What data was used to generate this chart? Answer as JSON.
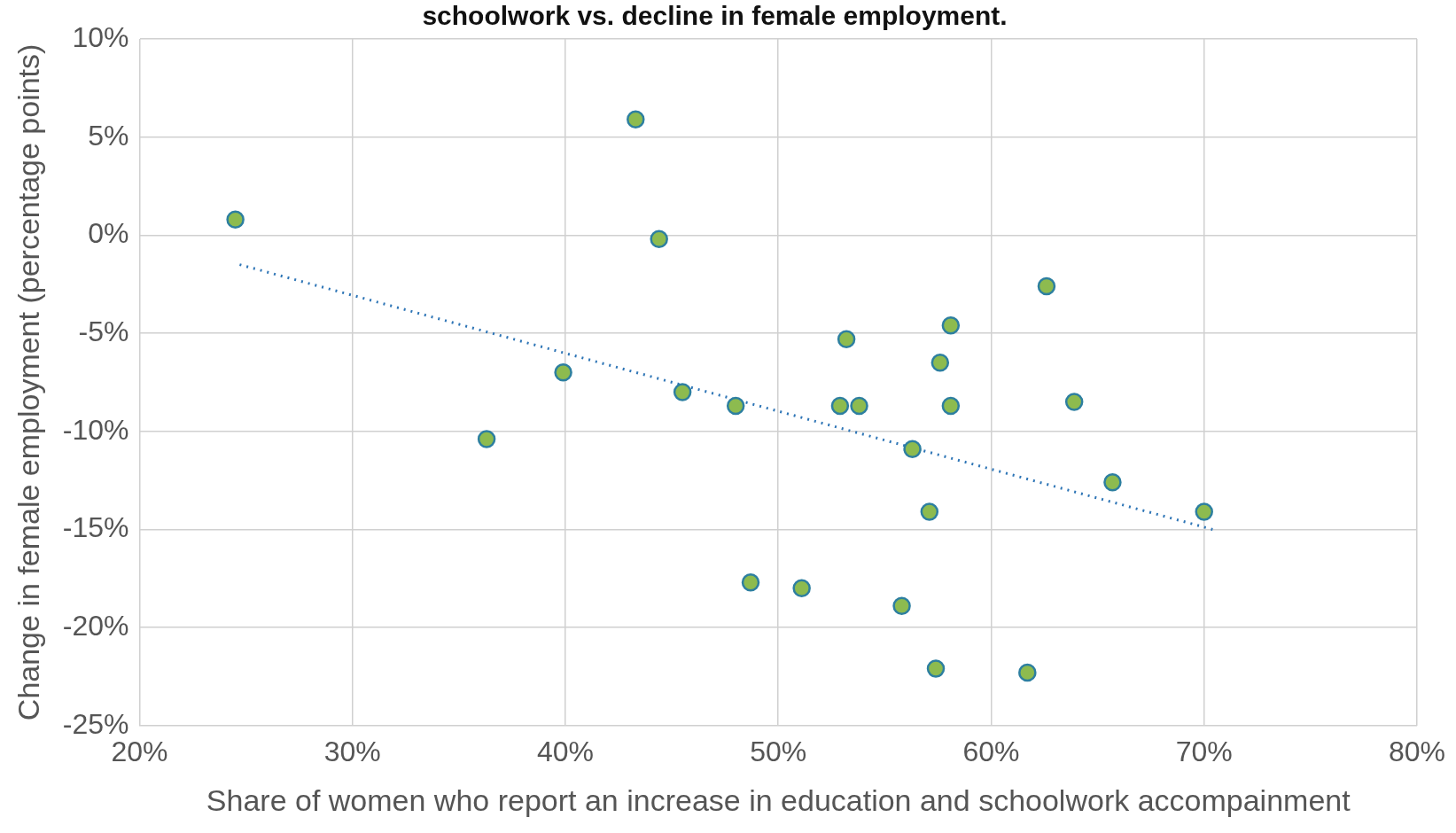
{
  "chart_data": {
    "type": "scatter",
    "title": "schoolwork vs. decline in female employment.",
    "xlabel": "Share of women who report an increase in education and schoolwork accompainment",
    "ylabel": "Change in female employment (percentage points)",
    "xlim": [
      20,
      80
    ],
    "xticks": [
      {
        "value": 20,
        "label": "20%"
      },
      {
        "value": 30,
        "label": "30%"
      },
      {
        "value": 40,
        "label": "40%"
      },
      {
        "value": 50,
        "label": "50%"
      },
      {
        "value": 60,
        "label": "60%"
      },
      {
        "value": 70,
        "label": "70%"
      },
      {
        "value": 80,
        "label": "80%"
      }
    ],
    "ylim": [
      -25,
      10
    ],
    "yticks": [
      {
        "value": -25,
        "label": "-25%"
      },
      {
        "value": -20,
        "label": "-20%"
      },
      {
        "value": -15,
        "label": "-15%"
      },
      {
        "value": -10,
        "label": "-10%"
      },
      {
        "value": -5,
        "label": "-5%"
      },
      {
        "value": 0,
        "label": "0%"
      },
      {
        "value": 5,
        "label": "5%"
      },
      {
        "value": 10,
        "label": "10%"
      }
    ],
    "grid": true,
    "legend": false,
    "series": [
      {
        "color": "#8dbb4f",
        "marker": "circle",
        "x": [
          24.5,
          43.3,
          44.4,
          62.6,
          58.1,
          53.2,
          57.6,
          39.9,
          45.5,
          48.0,
          52.9,
          53.8,
          58.1,
          63.9,
          36.3,
          56.3,
          65.7,
          57.1,
          70.0,
          48.7,
          51.1,
          55.8,
          57.4,
          61.7
        ],
        "values": [
          0.8,
          5.9,
          -0.2,
          -2.6,
          -4.6,
          -5.3,
          -6.5,
          -7.0,
          -8.0,
          -8.7,
          -8.7,
          -8.7,
          -8.7,
          -8.5,
          -10.4,
          -10.9,
          -12.6,
          -14.1,
          -14.1,
          -17.7,
          -18.0,
          -18.9,
          -22.1,
          -22.3
        ]
      },
      {
        "type": "line",
        "color": "#2e75b6",
        "marker": "none",
        "line_style": "dotted",
        "x": [
          24.7,
          70.4
        ],
        "values": [
          -1.5,
          -15.0
        ]
      }
    ]
  }
}
